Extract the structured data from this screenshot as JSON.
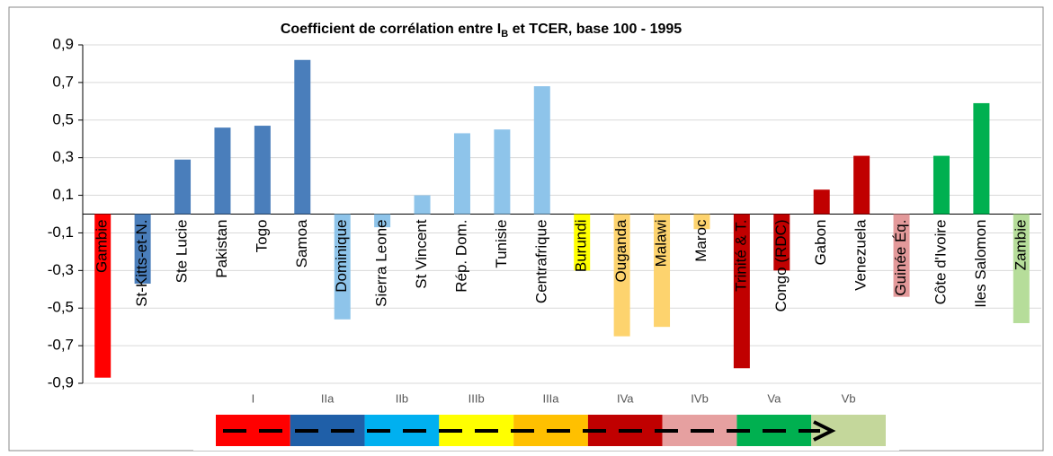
{
  "chart_data": {
    "type": "bar",
    "title": [
      "Coefficient de corrélation entre I",
      "B",
      " et TCER, base 100 - 1995"
    ],
    "categories": [
      "Gambie",
      "St-Kitts-et-N.",
      "Ste Lucie",
      "Pakistan",
      "Togo",
      "Samoa",
      "Dominique",
      "Sierra Leone",
      "St Vincent",
      "Rép. Dom.",
      "Tunisie",
      "Centrafrique",
      "Burundi",
      "Ouganda",
      "Malawi",
      "Maroc",
      "Trinité & T.",
      "Congo (RDC)",
      "Gabon",
      "Venezuela",
      "Guinée Éq.",
      "Côte d'Ivoire",
      "Iles Salomon",
      "Zambie"
    ],
    "values": [
      -0.87,
      -0.37,
      0.29,
      0.46,
      0.47,
      0.82,
      -0.56,
      -0.07,
      0.1,
      0.43,
      0.45,
      0.68,
      -0.3,
      -0.65,
      -0.6,
      -0.08,
      -0.82,
      -0.3,
      0.13,
      0.31,
      -0.44,
      0.31,
      0.59,
      -0.58
    ],
    "colors": [
      "#ff0000",
      "#4a7ebb",
      "#4a7ebb",
      "#4a7ebb",
      "#4a7ebb",
      "#4a7ebb",
      "#8ec4ea",
      "#8ec4ea",
      "#8ec4ea",
      "#8ec4ea",
      "#8ec4ea",
      "#8ec4ea",
      "#ffff00",
      "#fdd36e",
      "#fdd36e",
      "#fdd36e",
      "#c00000",
      "#c00000",
      "#c00000",
      "#c00000",
      "#e3999a",
      "#00b050",
      "#00b050",
      "#b6dd9a"
    ],
    "ylim": [
      -0.9,
      0.9
    ],
    "yticks": [
      {
        "value": 0.9,
        "label": "0,9"
      },
      {
        "value": 0.7,
        "label": "0,7"
      },
      {
        "value": 0.5,
        "label": "0,5"
      },
      {
        "value": 0.3,
        "label": "0,3"
      },
      {
        "value": 0.1,
        "label": "0,1"
      },
      {
        "value": -0.1,
        "label": "-0,1"
      },
      {
        "value": -0.3,
        "label": "-0,3"
      },
      {
        "value": -0.5,
        "label": "-0,5"
      },
      {
        "value": -0.7,
        "label": "-0,7"
      },
      {
        "value": -0.9,
        "label": "-0,9"
      }
    ],
    "grid": true,
    "legend": {
      "labels": [
        "I",
        "IIa",
        "IIb",
        "IIIb",
        "IIIa",
        "IVa",
        "IVb",
        "Va",
        "Vb"
      ],
      "colors": [
        "#ff0000",
        "#1f5fa8",
        "#00b0f0",
        "#ffff00",
        "#ffc000",
        "#c00000",
        "#e6a0a0",
        "#00b050",
        "#c4d79b"
      ]
    }
  }
}
